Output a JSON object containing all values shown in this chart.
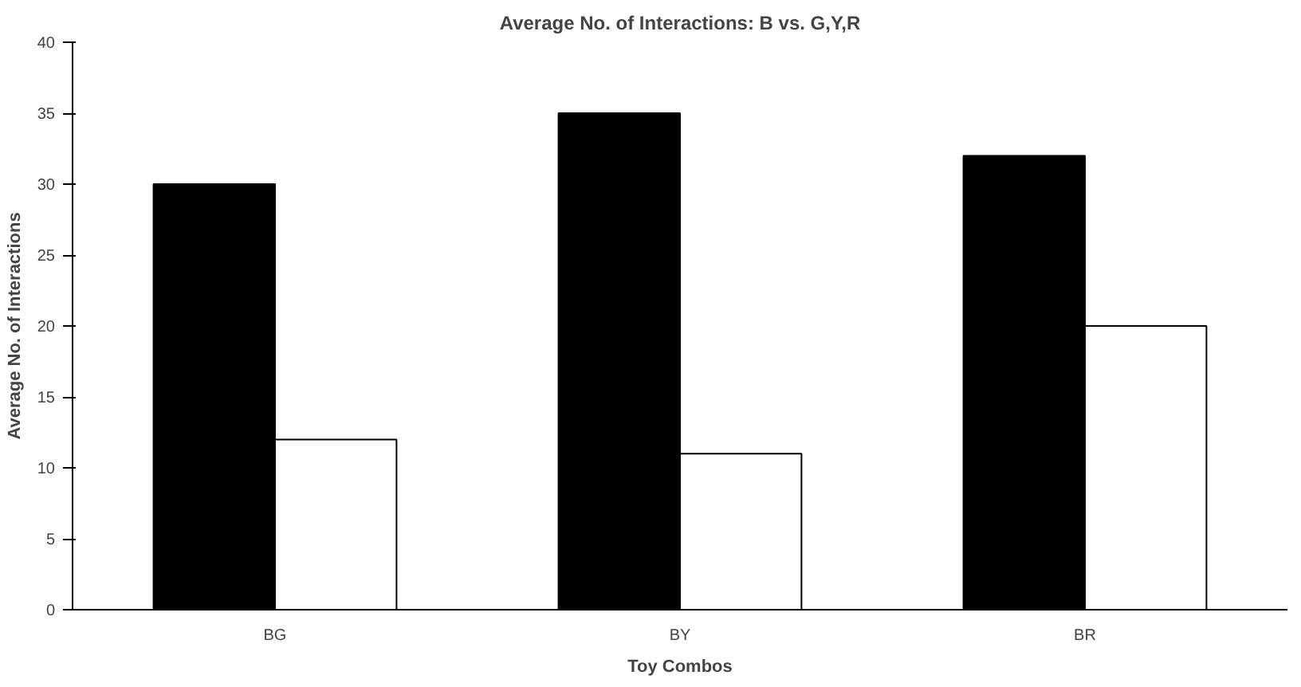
{
  "chart_data": {
    "type": "bar",
    "title": "Average No. of Interactions: B vs. G,Y,R",
    "xlabel": "Toy Combos",
    "ylabel": "Average No. of Interactions",
    "categories": [
      "BG",
      "BY",
      "BR"
    ],
    "series": [
      {
        "color": "#000000",
        "values": [
          30,
          35,
          32
        ]
      },
      {
        "color": "#ffffff",
        "values": [
          12,
          11,
          20
        ]
      }
    ],
    "ylim": [
      0,
      40
    ],
    "yticks": [
      0,
      5,
      10,
      15,
      20,
      25,
      30,
      35,
      40
    ],
    "grid": false
  }
}
